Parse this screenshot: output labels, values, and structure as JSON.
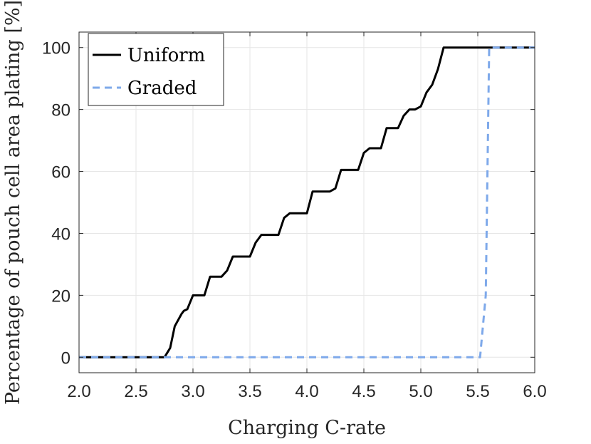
{
  "chart_data": {
    "type": "line",
    "xlabel": "Charging C-rate",
    "ylabel": "Percentage of pouch cell area plating [%]",
    "xlim": [
      2.0,
      6.0
    ],
    "ylim": [
      -5,
      105
    ],
    "x_ticks": [
      2.0,
      2.5,
      3.0,
      3.5,
      4.0,
      4.5,
      5.0,
      5.5,
      6.0
    ],
    "x_tick_labels": [
      "2.0",
      "2.5",
      "3.0",
      "3.5",
      "4.0",
      "4.5",
      "5.0",
      "5.5",
      "6.0"
    ],
    "y_ticks": [
      0,
      20,
      40,
      60,
      80,
      100
    ],
    "y_tick_labels": [
      "0",
      "20",
      "40",
      "60",
      "80",
      "100"
    ],
    "grid": true,
    "legend_position": "top-left",
    "series": [
      {
        "name": "Uniform",
        "color": "#000000",
        "style": "solid",
        "x": [
          2.0,
          2.75,
          2.8,
          2.84,
          2.9,
          2.92,
          2.95,
          3.0,
          3.05,
          3.1,
          3.15,
          3.25,
          3.3,
          3.35,
          3.5,
          3.55,
          3.6,
          3.75,
          3.8,
          3.85,
          4.0,
          4.05,
          4.2,
          4.25,
          4.3,
          4.45,
          4.5,
          4.55,
          4.65,
          4.7,
          4.8,
          4.85,
          4.9,
          4.95,
          5.0,
          5.05,
          5.1,
          5.15,
          5.2,
          6.0
        ],
        "y": [
          0,
          0,
          3,
          10,
          14,
          15,
          15.5,
          20,
          20,
          20,
          26,
          26,
          28,
          32.5,
          32.5,
          37,
          39.5,
          39.5,
          45,
          46.5,
          46.5,
          53.5,
          53.5,
          54.5,
          60.5,
          60.5,
          66,
          67.5,
          67.5,
          74,
          74,
          78,
          80,
          80,
          81,
          85.5,
          88,
          93,
          100,
          100
        ]
      },
      {
        "name": "Graded",
        "color": "#7ea9ea",
        "style": "dashed",
        "x": [
          2.0,
          5.52,
          5.57,
          5.6,
          6.0
        ],
        "y": [
          0,
          0,
          20,
          100,
          100
        ]
      }
    ]
  }
}
